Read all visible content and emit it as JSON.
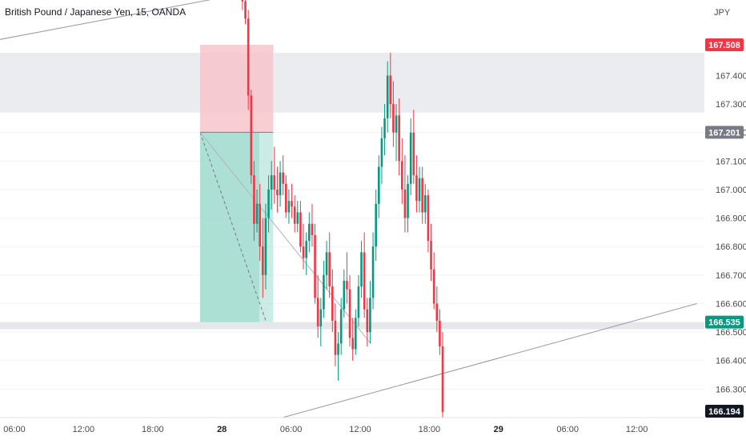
{
  "chart_data": {
    "type": "candlestick",
    "title": "British Pound / Japanese Yen, 15, OANDA",
    "currency": "JPY",
    "ylim": [
      166.2,
      167.665
    ],
    "y_ticks": [
      166.3,
      166.4,
      166.5,
      166.6,
      166.7,
      166.8,
      166.9,
      167.0,
      167.1,
      167.2,
      167.3,
      167.4
    ],
    "x_labels": [
      {
        "label": "06:00",
        "slot": 0,
        "bold": false
      },
      {
        "label": "12:00",
        "slot": 6,
        "bold": false
      },
      {
        "label": "18:00",
        "slot": 12,
        "bold": false
      },
      {
        "label": "28",
        "slot": 18,
        "bold": true
      },
      {
        "label": "06:00",
        "slot": 24,
        "bold": false
      },
      {
        "label": "12:00",
        "slot": 30,
        "bold": false
      },
      {
        "label": "18:00",
        "slot": 36,
        "bold": false
      },
      {
        "label": "29",
        "slot": 42,
        "bold": true
      },
      {
        "label": "06:00",
        "slot": 48,
        "bold": false
      },
      {
        "label": "12:00",
        "slot": 54,
        "bold": false
      }
    ],
    "price_tags": [
      {
        "value": 167.508,
        "label": "167.508",
        "color": "#f23645"
      },
      {
        "value": 167.201,
        "label": "167.201",
        "color": "#787b86"
      },
      {
        "value": 166.535,
        "label": "166.535",
        "color": "#089981"
      },
      {
        "value": 166.194,
        "label": "166.194",
        "color": "#131722"
      }
    ],
    "zones": [
      {
        "name": "resistance-zone",
        "from": 167.27,
        "to": 167.48,
        "color": "#e9eaee"
      },
      {
        "name": "support-zone",
        "from": 166.535,
        "to": 166.51,
        "color": "#e3e4e8"
      }
    ],
    "position": {
      "entry": 167.201,
      "stop": 167.508,
      "target": 166.535,
      "start_hour": 16.0,
      "end_hour": 22.3,
      "stop_color": "#f7c5cb",
      "target_color": "#9fdccf"
    },
    "trend_lines": [
      {
        "name": "upper-trendline",
        "x1": -21.6,
        "y1": 167.37,
        "x2": 20.0,
        "y2": 167.69
      },
      {
        "name": "lower-trendline",
        "x1": 23.1,
        "y1": 166.2,
        "x2": 58.8,
        "y2": 166.6
      }
    ],
    "colors": {
      "up": "#089981",
      "down": "#f23645",
      "grid": "#f0f3fa"
    },
    "candles": [
      [
        19.65,
        167.67,
        167.7,
        167.63,
        167.66
      ],
      [
        19.9,
        167.66,
        167.69,
        167.58,
        167.6
      ],
      [
        20.15,
        167.6,
        167.63,
        167.28,
        167.33
      ],
      [
        20.4,
        167.33,
        167.35,
        167.02,
        167.05
      ],
      [
        20.65,
        167.05,
        167.1,
        166.82,
        166.88
      ],
      [
        20.9,
        166.88,
        167.0,
        166.85,
        166.95
      ],
      [
        21.15,
        166.95,
        167.02,
        166.75,
        166.8
      ],
      [
        21.4,
        166.8,
        166.9,
        166.62,
        166.7
      ],
      [
        21.65,
        166.7,
        166.95,
        166.65,
        166.9
      ],
      [
        21.9,
        166.9,
        167.05,
        166.85,
        167.0
      ],
      [
        22.15,
        167.0,
        167.1,
        166.93,
        167.05
      ],
      [
        22.4,
        167.05,
        167.15,
        166.95,
        167.0
      ],
      [
        22.65,
        167.0,
        167.08,
        166.92,
        166.98
      ],
      [
        22.9,
        166.98,
        167.1,
        166.94,
        167.06
      ],
      [
        23.15,
        167.06,
        167.12,
        166.98,
        167.02
      ],
      [
        23.4,
        167.02,
        167.05,
        166.9,
        166.92
      ],
      [
        23.65,
        166.92,
        167.0,
        166.88,
        166.96
      ],
      [
        23.9,
        166.96,
        167.02,
        166.9,
        166.94
      ],
      [
        24.15,
        166.94,
        166.98,
        166.85,
        166.88
      ],
      [
        24.4,
        166.88,
        166.96,
        166.85,
        166.92
      ],
      [
        24.65,
        166.92,
        166.96,
        166.78,
        166.8
      ],
      [
        24.9,
        166.8,
        166.88,
        166.72,
        166.76
      ],
      [
        25.15,
        166.76,
        166.85,
        166.7,
        166.82
      ],
      [
        25.4,
        166.82,
        166.92,
        166.78,
        166.88
      ],
      [
        25.65,
        166.88,
        166.95,
        166.8,
        166.84
      ],
      [
        25.9,
        166.84,
        166.88,
        166.6,
        166.62
      ],
      [
        26.15,
        166.62,
        166.7,
        166.48,
        166.52
      ],
      [
        26.4,
        166.52,
        166.62,
        166.45,
        166.58
      ],
      [
        26.65,
        166.58,
        166.75,
        166.55,
        166.7
      ],
      [
        26.9,
        166.7,
        166.82,
        166.65,
        166.78
      ],
      [
        27.15,
        166.78,
        166.85,
        166.62,
        166.66
      ],
      [
        27.4,
        166.66,
        166.72,
        166.5,
        166.54
      ],
      [
        27.65,
        166.54,
        166.6,
        166.38,
        166.42
      ],
      [
        27.9,
        166.42,
        166.5,
        166.33,
        166.46
      ],
      [
        28.15,
        166.46,
        166.62,
        166.42,
        166.58
      ],
      [
        28.4,
        166.58,
        166.72,
        166.55,
        166.68
      ],
      [
        28.65,
        166.68,
        166.78,
        166.6,
        166.65
      ],
      [
        28.9,
        166.65,
        166.7,
        166.45,
        166.48
      ],
      [
        29.15,
        166.48,
        166.55,
        166.4,
        166.44
      ],
      [
        29.4,
        166.44,
        166.58,
        166.42,
        166.55
      ],
      [
        29.65,
        166.55,
        166.7,
        166.52,
        166.66
      ],
      [
        29.9,
        166.66,
        166.82,
        166.62,
        166.78
      ],
      [
        30.15,
        166.78,
        166.85,
        166.55,
        166.58
      ],
      [
        30.4,
        166.58,
        166.62,
        166.45,
        166.5
      ],
      [
        30.65,
        166.5,
        166.68,
        166.46,
        166.62
      ],
      [
        30.9,
        166.62,
        166.85,
        166.58,
        166.8
      ],
      [
        31.15,
        166.8,
        167.0,
        166.75,
        166.95
      ],
      [
        31.4,
        166.95,
        167.12,
        166.9,
        167.08
      ],
      [
        31.65,
        167.08,
        167.22,
        167.02,
        167.18
      ],
      [
        31.9,
        167.18,
        167.3,
        167.12,
        167.25
      ],
      [
        32.15,
        167.25,
        167.45,
        167.2,
        167.4
      ],
      [
        32.4,
        167.4,
        167.48,
        167.25,
        167.3
      ],
      [
        32.65,
        167.3,
        167.38,
        167.15,
        167.2
      ],
      [
        32.9,
        167.2,
        167.3,
        167.1,
        167.26
      ],
      [
        33.15,
        167.26,
        167.32,
        167.05,
        167.1
      ],
      [
        33.4,
        167.1,
        167.18,
        166.95,
        167.0
      ],
      [
        33.65,
        167.0,
        167.12,
        166.85,
        166.9
      ],
      [
        33.9,
        166.9,
        167.05,
        166.85,
        167.02
      ],
      [
        34.15,
        167.02,
        167.25,
        166.98,
        167.2
      ],
      [
        34.4,
        167.2,
        167.28,
        167.02,
        167.05
      ],
      [
        34.65,
        167.05,
        167.12,
        166.92,
        166.96
      ],
      [
        34.9,
        166.96,
        167.08,
        166.92,
        167.04
      ],
      [
        35.15,
        167.04,
        167.08,
        166.88,
        166.92
      ],
      [
        35.4,
        166.92,
        167.02,
        166.88,
        166.98
      ],
      [
        35.65,
        166.98,
        167.0,
        166.78,
        166.82
      ],
      [
        35.9,
        166.82,
        166.88,
        166.68,
        166.72
      ],
      [
        36.15,
        166.72,
        166.78,
        166.58,
        166.6
      ],
      [
        36.4,
        166.6,
        166.66,
        166.5,
        166.54
      ],
      [
        36.65,
        166.54,
        166.58,
        166.42,
        166.45
      ],
      [
        36.9,
        166.45,
        166.5,
        166.2,
        166.22
      ]
    ]
  }
}
